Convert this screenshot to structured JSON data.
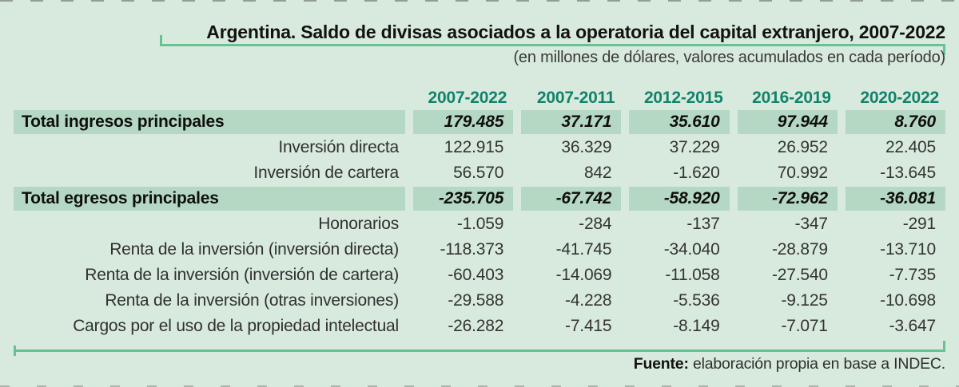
{
  "palette": {
    "background": "#d8eadd",
    "row_band": "#b5d8c4",
    "header_teal": "#12826a",
    "rule_green": "#68c191",
    "text_dark": "#121210",
    "text_body": "#343431"
  },
  "header": {
    "title": "Argentina. Saldo de divisas asociados a la operatoria del capital extranjero, 2007-2022",
    "subtitle": "(en millones de dólares, valores acumulados en cada período)"
  },
  "table": {
    "columns": [
      "2007-2022",
      "2007-2011",
      "2012-2015",
      "2016-2019",
      "2020-2022"
    ],
    "rows": [
      {
        "label": "Total ingresos principales",
        "type": "total",
        "values": [
          "179.485",
          "37.171",
          "35.610",
          "97.944",
          "8.760"
        ]
      },
      {
        "label": "Inversión directa",
        "type": "detail",
        "values": [
          "122.915",
          "36.329",
          "37.229",
          "26.952",
          "22.405"
        ]
      },
      {
        "label": "Inversión de cartera",
        "type": "detail",
        "values": [
          "56.570",
          "842",
          "-1.620",
          "70.992",
          "-13.645"
        ]
      },
      {
        "label": "Total egresos principales",
        "type": "total",
        "values": [
          "-235.705",
          "-67.742",
          "-58.920",
          "-72.962",
          "-36.081"
        ]
      },
      {
        "label": "Honorarios",
        "type": "detail",
        "values": [
          "-1.059",
          "-284",
          "-137",
          "-347",
          "-291"
        ]
      },
      {
        "label": "Renta de la inversión (inversión directa)",
        "type": "detail",
        "values": [
          "-118.373",
          "-41.745",
          "-34.040",
          "-28.879",
          "-13.710"
        ]
      },
      {
        "label": "Renta de la inversión (inversión de cartera)",
        "type": "detail",
        "values": [
          "-60.403",
          "-14.069",
          "-11.058",
          "-27.540",
          "-7.735"
        ]
      },
      {
        "label": "Renta de la inversión (otras inversiones)",
        "type": "detail",
        "values": [
          "-29.588",
          "-4.228",
          "-5.536",
          "-9.125",
          "-10.698"
        ]
      },
      {
        "label": "Cargos por el uso de la propiedad intelectual",
        "type": "detail",
        "values": [
          "-26.282",
          "-7.415",
          "-8.149",
          "-7.071",
          "-3.647"
        ]
      }
    ]
  },
  "footer": {
    "source_label": "Fuente:",
    "source_text": " elaboración propia en base a INDEC."
  },
  "chart_data": {
    "type": "table",
    "title": "Argentina. Saldo de divisas asociados a la operatoria del capital extranjero, 2007-2022",
    "subtitle": "(en millones de dólares, valores acumulados en cada período)",
    "unit": "millones de dólares",
    "columns": [
      "2007-2022",
      "2007-2011",
      "2012-2015",
      "2016-2019",
      "2020-2022"
    ],
    "rows": [
      {
        "label": "Total ingresos principales",
        "values": [
          179485,
          37171,
          35610,
          97944,
          8760
        ]
      },
      {
        "label": "Inversión directa",
        "values": [
          122915,
          36329,
          37229,
          26952,
          22405
        ]
      },
      {
        "label": "Inversión de cartera",
        "values": [
          56570,
          842,
          -1620,
          70992,
          -13645
        ]
      },
      {
        "label": "Total egresos principales",
        "values": [
          -235705,
          -67742,
          -58920,
          -72962,
          -36081
        ]
      },
      {
        "label": "Honorarios",
        "values": [
          -1059,
          -284,
          -137,
          -347,
          -291
        ]
      },
      {
        "label": "Renta de la inversión (inversión directa)",
        "values": [
          -118373,
          -41745,
          -34040,
          -28879,
          -13710
        ]
      },
      {
        "label": "Renta de la inversión (inversión de cartera)",
        "values": [
          -60403,
          -14069,
          -11058,
          -27540,
          -7735
        ]
      },
      {
        "label": "Renta de la inversión (otras inversiones)",
        "values": [
          -29588,
          -4228,
          -5536,
          -9125,
          -10698
        ]
      },
      {
        "label": "Cargos por el uso de la propiedad intelectual",
        "values": [
          -26282,
          -7415,
          -8149,
          -7071,
          -3647
        ]
      }
    ],
    "source": "Fuente: elaboración propia en base a INDEC."
  }
}
